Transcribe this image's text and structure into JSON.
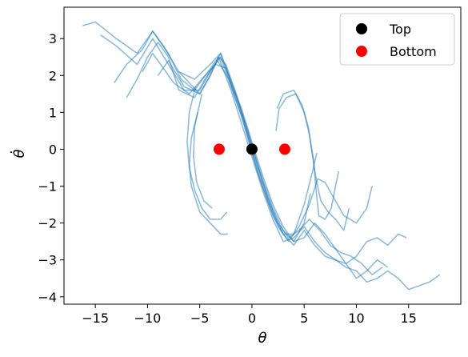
{
  "chart_data": {
    "type": "line",
    "title": "",
    "xlabel": "θ",
    "ylabel": "θ̇",
    "xlim": [
      -18,
      20
    ],
    "ylim": [
      -4.2,
      3.85
    ],
    "xticks": [
      -15,
      -10,
      -5,
      0,
      5,
      10,
      15
    ],
    "yticks": [
      -4,
      -3,
      -2,
      -1,
      0,
      1,
      2,
      3
    ],
    "grid": false,
    "legend_position": "top-right",
    "colors": {
      "trajectory": "#1f77b4",
      "top": "#000000",
      "bottom": "#ff0000"
    },
    "series": [
      {
        "kind": "trajectory",
        "points": [
          [
            -16.2,
            3.35
          ],
          [
            -15,
            3.45
          ],
          [
            -13,
            3.0
          ],
          [
            -11,
            2.6
          ],
          [
            -9.5,
            3.2
          ],
          [
            -8.5,
            2.8
          ],
          [
            -7,
            2.1
          ],
          [
            -5.5,
            1.9
          ],
          [
            -4,
            2.3
          ],
          [
            -3,
            2.6
          ],
          [
            -2,
            1.8
          ],
          [
            -1,
            1.1
          ],
          [
            0,
            0.2
          ],
          [
            1,
            -0.7
          ],
          [
            2,
            -1.5
          ],
          [
            3,
            -2.1
          ],
          [
            4,
            -2.5
          ],
          [
            5,
            -2.0
          ],
          [
            5.6,
            -1.2
          ]
        ]
      },
      {
        "kind": "trajectory",
        "points": [
          [
            -14.5,
            3.1
          ],
          [
            -13,
            2.8
          ],
          [
            -11,
            2.3
          ],
          [
            -9.5,
            3.0
          ],
          [
            -8,
            2.3
          ],
          [
            -6.5,
            1.6
          ],
          [
            -5,
            1.6
          ],
          [
            -3.8,
            2.2
          ],
          [
            -3,
            2.5
          ],
          [
            -2,
            1.7
          ],
          [
            -1,
            0.9
          ],
          [
            0,
            -0.1
          ],
          [
            1,
            -1.0
          ],
          [
            2,
            -1.8
          ],
          [
            3,
            -2.3
          ],
          [
            4,
            -2.3
          ],
          [
            5,
            -1.5
          ],
          [
            5.8,
            -0.6
          ],
          [
            6.2,
            -0.1
          ]
        ]
      },
      {
        "kind": "trajectory",
        "points": [
          [
            -13.2,
            1.8
          ],
          [
            -12,
            2.3
          ],
          [
            -10.5,
            2.7
          ],
          [
            -9.5,
            3.2
          ],
          [
            -8,
            2.6
          ],
          [
            -6.8,
            1.9
          ],
          [
            -5.5,
            1.6
          ],
          [
            -4.2,
            2.1
          ],
          [
            -3.2,
            2.5
          ],
          [
            -2,
            1.6
          ],
          [
            -1,
            0.7
          ],
          [
            0,
            -0.2
          ],
          [
            1,
            -1.1
          ],
          [
            2,
            -1.9
          ],
          [
            3,
            -2.5
          ],
          [
            4,
            -2.4
          ],
          [
            5,
            -2.1
          ],
          [
            6,
            -2.5
          ],
          [
            7,
            -2.8
          ],
          [
            8,
            -3.0
          ],
          [
            9,
            -3.2
          ],
          [
            10,
            -3.3
          ],
          [
            11,
            -3.6
          ],
          [
            12,
            -3.5
          ],
          [
            13,
            -3.3
          ],
          [
            14,
            -3.5
          ],
          [
            15,
            -3.8
          ],
          [
            16,
            -3.7
          ],
          [
            17,
            -3.6
          ],
          [
            18,
            -3.4
          ]
        ]
      },
      {
        "kind": "trajectory",
        "points": [
          [
            -12,
            1.4
          ],
          [
            -11,
            1.9
          ],
          [
            -10,
            2.5
          ],
          [
            -9,
            2.9
          ],
          [
            -8,
            2.5
          ],
          [
            -7,
            1.6
          ],
          [
            -5.5,
            1.4
          ],
          [
            -4.5,
            1.9
          ],
          [
            -3.3,
            2.4
          ],
          [
            -2.2,
            1.9
          ],
          [
            -1,
            0.9
          ],
          [
            0,
            0.0
          ],
          [
            1,
            -0.9
          ],
          [
            2,
            -1.7
          ],
          [
            3,
            -2.3
          ],
          [
            4,
            -2.6
          ],
          [
            5,
            -2.2
          ],
          [
            6,
            -2.6
          ],
          [
            7,
            -2.9
          ],
          [
            8,
            -3.0
          ],
          [
            9,
            -3.1
          ],
          [
            10,
            -3.5
          ],
          [
            11,
            -3.3
          ],
          [
            12,
            -3.0
          ],
          [
            13,
            -3.2
          ]
        ]
      },
      {
        "kind": "trajectory",
        "points": [
          [
            -10.5,
            2.1
          ],
          [
            -9.5,
            2.6
          ],
          [
            -8.5,
            2.2
          ],
          [
            -7.5,
            1.8
          ],
          [
            -6,
            1.5
          ],
          [
            -4.8,
            1.9
          ],
          [
            -3.5,
            2.3
          ],
          [
            -2.5,
            2.2
          ],
          [
            -1.5,
            1.4
          ],
          [
            -0.5,
            0.6
          ],
          [
            0.5,
            -0.4
          ],
          [
            1.5,
            -1.3
          ],
          [
            2.5,
            -2.0
          ],
          [
            3.5,
            -2.4
          ],
          [
            4.5,
            -2.2
          ],
          [
            5.5,
            -1.9
          ],
          [
            6.5,
            -2.2
          ],
          [
            7.5,
            -2.6
          ],
          [
            8.5,
            -2.8
          ],
          [
            9.5,
            -2.9
          ],
          [
            10.5,
            -3.1
          ],
          [
            11.5,
            -3.4
          ],
          [
            12.5,
            -3.2
          ]
        ]
      },
      {
        "kind": "trajectory",
        "points": [
          [
            -9,
            2.0
          ],
          [
            -8,
            2.4
          ],
          [
            -6.5,
            1.7
          ],
          [
            -5,
            1.5
          ],
          [
            -4,
            2.0
          ],
          [
            -3,
            2.6
          ],
          [
            -2.2,
            2.0
          ],
          [
            -1.2,
            1.2
          ],
          [
            0,
            0.1
          ],
          [
            1,
            -0.8
          ],
          [
            2,
            -1.6
          ],
          [
            3,
            -2.2
          ],
          [
            4,
            -2.5
          ],
          [
            5,
            -2.4
          ],
          [
            6,
            -2.0
          ],
          [
            7,
            -2.3
          ],
          [
            8,
            -2.7
          ],
          [
            9,
            -3.1
          ],
          [
            10,
            -2.9
          ],
          [
            11,
            -2.5
          ],
          [
            12,
            -2.4
          ],
          [
            13,
            -2.6
          ],
          [
            14,
            -2.3
          ],
          [
            14.8,
            -2.4
          ]
        ]
      },
      {
        "kind": "trajectory",
        "points": [
          [
            -7,
            2.1
          ],
          [
            -6,
            1.8
          ],
          [
            -5,
            1.5
          ],
          [
            -4,
            2.0
          ],
          [
            -3.2,
            2.5
          ],
          [
            -2.5,
            2.3
          ],
          [
            -1.5,
            1.5
          ],
          [
            -0.5,
            0.5
          ],
          [
            0.5,
            -0.6
          ],
          [
            1.5,
            -1.4
          ],
          [
            2.5,
            -2.1
          ],
          [
            3.5,
            -2.5
          ],
          [
            4.5,
            -2.1
          ],
          [
            5.5,
            -1.5
          ],
          [
            6.3,
            -0.8
          ],
          [
            7,
            -0.9
          ],
          [
            8,
            -1.4
          ],
          [
            8.8,
            -1.8
          ],
          [
            10,
            -2.0
          ],
          [
            11,
            -1.6
          ],
          [
            11.5,
            -1.0
          ]
        ]
      },
      {
        "kind": "trajectory",
        "points": [
          [
            -5.2,
            1.0
          ],
          [
            -5.8,
            0.3
          ],
          [
            -6,
            -0.4
          ],
          [
            -5.8,
            -1.0
          ],
          [
            -5,
            -1.7
          ],
          [
            -4,
            -2.0
          ],
          [
            -3,
            -2.3
          ],
          [
            -2.3,
            -2.3
          ]
        ]
      },
      {
        "kind": "trajectory",
        "points": [
          [
            -5.4,
            1.7
          ],
          [
            -6,
            1.0
          ],
          [
            -6.2,
            0.2
          ],
          [
            -6.0,
            -0.5
          ],
          [
            -5.5,
            -1.1
          ],
          [
            -4.8,
            -1.6
          ],
          [
            -4,
            -1.9
          ],
          [
            -3,
            -1.9
          ],
          [
            -2.4,
            -1.7
          ]
        ]
      },
      {
        "kind": "trajectory",
        "points": [
          [
            -4.8,
            1.5
          ],
          [
            -5.5,
            0.6
          ],
          [
            -5.6,
            -0.2
          ],
          [
            -5.3,
            -0.9
          ],
          [
            -4.6,
            -1.4
          ],
          [
            -3.8,
            -1.6
          ]
        ]
      },
      {
        "kind": "trajectory",
        "points": [
          [
            2.3,
            0.5
          ],
          [
            2.6,
            1.1
          ],
          [
            3.3,
            1.4
          ],
          [
            4.2,
            1.5
          ],
          [
            5.0,
            1.0
          ],
          [
            5.5,
            0.4
          ],
          [
            5.9,
            -0.3
          ],
          [
            6.1,
            -1.0
          ],
          [
            6.4,
            -1.8
          ],
          [
            7.0,
            -1.9
          ],
          [
            7.6,
            -1.6
          ],
          [
            8.0,
            -1.0
          ],
          [
            8.3,
            -0.6
          ]
        ]
      },
      {
        "kind": "trajectory",
        "points": [
          [
            2.4,
            1.1
          ],
          [
            3.0,
            1.5
          ],
          [
            4.0,
            1.6
          ],
          [
            4.8,
            1.2
          ],
          [
            5.4,
            0.6
          ],
          [
            5.8,
            -0.2
          ],
          [
            6.2,
            -0.9
          ],
          [
            6.6,
            -1.4
          ],
          [
            7.3,
            -1.7
          ],
          [
            8.0,
            -1.9
          ],
          [
            8.8,
            -2.2
          ],
          [
            9.3,
            -1.6
          ]
        ]
      }
    ],
    "markers": [
      {
        "name": "Top",
        "x": 0,
        "y": 0,
        "color": "#000000"
      },
      {
        "name": "Bottom",
        "x": -3.1416,
        "y": 0,
        "color": "#ff0000"
      },
      {
        "name": "Bottom",
        "x": 3.1416,
        "y": 0,
        "color": "#ff0000"
      }
    ],
    "legend": [
      {
        "label": "Top",
        "color": "#000000"
      },
      {
        "label": "Bottom",
        "color": "#ff0000"
      }
    ]
  }
}
